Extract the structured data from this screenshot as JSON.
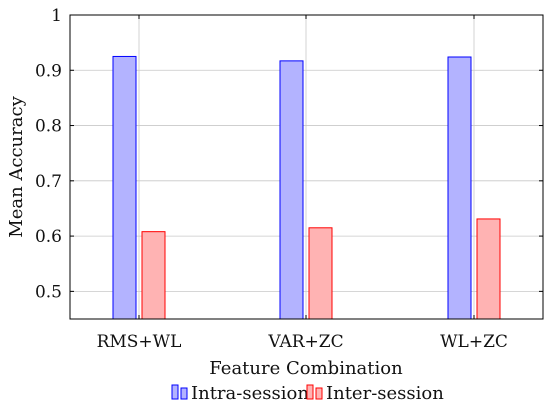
{
  "chart_data": {
    "type": "bar",
    "title": "",
    "xlabel": "Feature Combination",
    "ylabel": "Mean Accuracy",
    "categories": [
      "RMS+WL",
      "VAR+ZC",
      "WL+ZC"
    ],
    "series": [
      {
        "name": "Intra-session",
        "values": [
          0.925,
          0.917,
          0.924
        ],
        "color": "#0000ff",
        "fill": "#b3b3ff"
      },
      {
        "name": "Inter-session",
        "values": [
          0.608,
          0.615,
          0.631
        ],
        "color": "#ff0000",
        "fill": "#ffb3b3"
      }
    ],
    "ylim": [
      0.45,
      1.0
    ],
    "yticks": [
      0.5,
      0.6,
      0.7,
      0.8,
      0.9,
      1.0
    ],
    "ytick_labels": [
      "0.5",
      "0.6",
      "0.7",
      "0.8",
      "0.9",
      "1"
    ],
    "grid": true,
    "legend_position": "bottom-center"
  }
}
